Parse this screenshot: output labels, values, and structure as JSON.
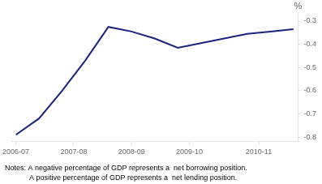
{
  "chart_data": {
    "type": "line",
    "x": [
      0,
      1,
      2,
      3,
      4,
      5,
      6,
      7,
      8,
      9,
      10,
      11,
      12
    ],
    "values": [
      -0.79,
      -0.72,
      -0.6,
      -0.47,
      -0.325,
      -0.345,
      -0.375,
      -0.415,
      -0.395,
      -0.375,
      -0.355,
      -0.345,
      -0.335
    ],
    "color": "#1a237e",
    "xlim": [
      -0.2,
      12.2
    ],
    "xticks": [
      {
        "value": 0,
        "label": "2006-07"
      },
      {
        "value": 2.5,
        "label": "2007-08"
      },
      {
        "value": 5,
        "label": "2008-09"
      },
      {
        "value": 7.5,
        "label": "2009-10"
      },
      {
        "value": 10.5,
        "label": "2010-11"
      }
    ],
    "ylim": [
      -0.82,
      -0.265
    ],
    "yticks": [
      -0.8,
      -0.7,
      -0.6,
      -0.5,
      -0.4,
      -0.3
    ],
    "ylabel": "%",
    "annotations": [
      "Notes: A negative percentage of GDP represents a  net borrowing position.",
      "            A positive percentage of GDP represents a  net lending position."
    ],
    "grid": false
  }
}
